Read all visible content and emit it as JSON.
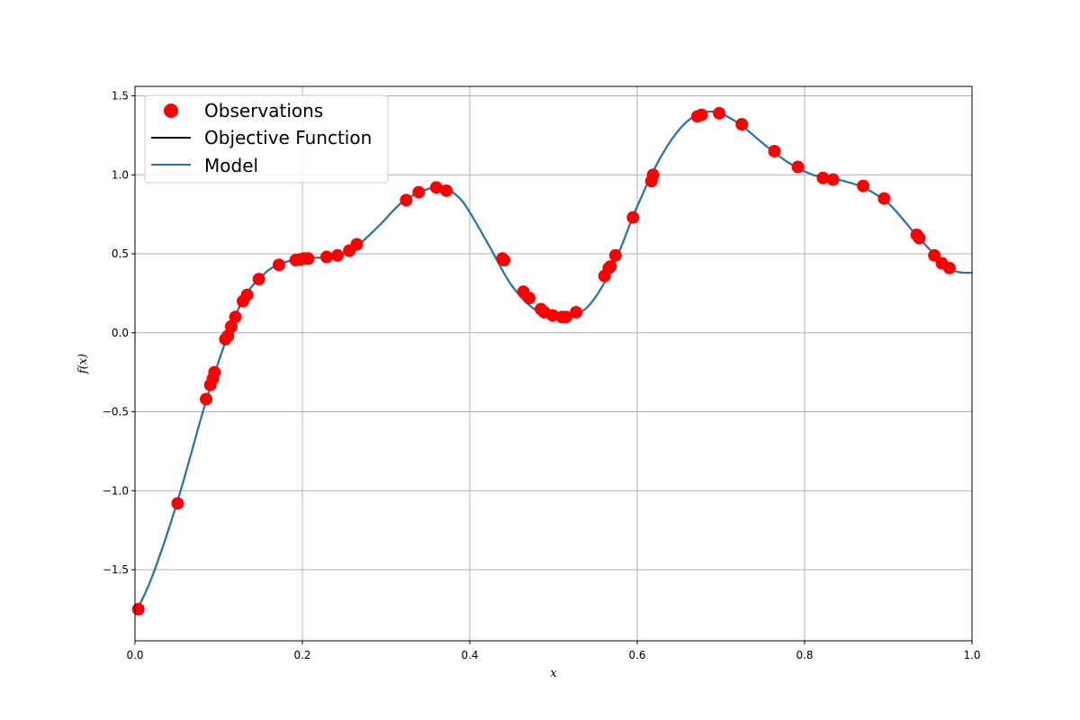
{
  "chart_data": {
    "type": "line",
    "title": "",
    "xlabel": "x",
    "ylabel": "f(x)",
    "xlim": [
      0.0,
      1.0
    ],
    "ylim": [
      -1.95,
      1.56
    ],
    "grid": true,
    "legend_position": "top-left",
    "x_ticks": [
      "0.0",
      "0.2",
      "0.4",
      "0.6",
      "0.8",
      "1.0"
    ],
    "x_tick_values": [
      0.0,
      0.2,
      0.4,
      0.6,
      0.8,
      1.0
    ],
    "y_ticks": [
      "−1.5",
      "−1.0",
      "−0.5",
      "0.0",
      "0.5",
      "1.0",
      "1.5"
    ],
    "y_tick_values": [
      -1.5,
      -1.0,
      -0.5,
      0.0,
      0.5,
      1.0,
      1.5
    ],
    "series": [
      {
        "name": "Observations",
        "kind": "scatter",
        "color": "#ff0000",
        "x": [
          0.004,
          0.051,
          0.085,
          0.09,
          0.093,
          0.095,
          0.108,
          0.111,
          0.115,
          0.12,
          0.129,
          0.134,
          0.148,
          0.172,
          0.192,
          0.198,
          0.202,
          0.207,
          0.229,
          0.242,
          0.256,
          0.265,
          0.324,
          0.339,
          0.36,
          0.372,
          0.439,
          0.441,
          0.464,
          0.471,
          0.485,
          0.489,
          0.499,
          0.51,
          0.515,
          0.527,
          0.561,
          0.566,
          0.568,
          0.574,
          0.595,
          0.617,
          0.619,
          0.672,
          0.677,
          0.698,
          0.725,
          0.764,
          0.792,
          0.822,
          0.834,
          0.87,
          0.895,
          0.934,
          0.937,
          0.955,
          0.964,
          0.973
        ],
        "y": [
          -1.75,
          -1.08,
          -0.42,
          -0.33,
          -0.29,
          -0.25,
          -0.04,
          -0.02,
          0.04,
          0.1,
          0.2,
          0.24,
          0.34,
          0.43,
          0.46,
          0.465,
          0.47,
          0.47,
          0.48,
          0.49,
          0.52,
          0.56,
          0.84,
          0.89,
          0.92,
          0.9,
          0.47,
          0.46,
          0.26,
          0.22,
          0.15,
          0.13,
          0.11,
          0.1,
          0.1,
          0.13,
          0.36,
          0.41,
          0.42,
          0.49,
          0.73,
          0.96,
          1.0,
          1.37,
          1.38,
          1.39,
          1.32,
          1.15,
          1.05,
          0.98,
          0.97,
          0.93,
          0.85,
          0.62,
          0.6,
          0.49,
          0.44,
          0.41
        ]
      },
      {
        "name": "Objective Function",
        "kind": "line",
        "color": "#000000",
        "x": [
          0.0,
          0.02,
          0.05,
          0.085,
          0.11,
          0.13,
          0.15,
          0.17,
          0.2,
          0.23,
          0.26,
          0.29,
          0.32,
          0.35,
          0.365,
          0.39,
          0.42,
          0.45,
          0.48,
          0.51,
          0.54,
          0.57,
          0.6,
          0.63,
          0.66,
          0.69,
          0.72,
          0.75,
          0.78,
          0.81,
          0.84,
          0.87,
          0.9,
          0.93,
          0.96,
          0.98,
          1.0
        ],
        "y": [
          -1.78,
          -1.55,
          -1.08,
          -0.43,
          -0.03,
          0.22,
          0.35,
          0.43,
          0.47,
          0.48,
          0.53,
          0.67,
          0.83,
          0.91,
          0.92,
          0.84,
          0.58,
          0.3,
          0.14,
          0.1,
          0.16,
          0.41,
          0.8,
          1.13,
          1.34,
          1.4,
          1.33,
          1.2,
          1.08,
          1.0,
          0.97,
          0.92,
          0.82,
          0.64,
          0.47,
          0.39,
          0.38
        ]
      },
      {
        "name": "Model",
        "kind": "line",
        "color": "#1f77b4",
        "x": [
          0.0,
          0.02,
          0.05,
          0.085,
          0.11,
          0.13,
          0.15,
          0.17,
          0.2,
          0.23,
          0.26,
          0.29,
          0.32,
          0.35,
          0.365,
          0.39,
          0.42,
          0.45,
          0.48,
          0.51,
          0.54,
          0.57,
          0.6,
          0.63,
          0.66,
          0.69,
          0.72,
          0.75,
          0.78,
          0.81,
          0.84,
          0.87,
          0.9,
          0.93,
          0.96,
          0.98,
          1.0
        ],
        "y": [
          -1.78,
          -1.55,
          -1.08,
          -0.43,
          -0.03,
          0.22,
          0.35,
          0.43,
          0.47,
          0.48,
          0.53,
          0.67,
          0.83,
          0.91,
          0.92,
          0.84,
          0.58,
          0.3,
          0.14,
          0.1,
          0.16,
          0.41,
          0.8,
          1.13,
          1.34,
          1.4,
          1.33,
          1.2,
          1.08,
          1.0,
          0.97,
          0.92,
          0.82,
          0.64,
          0.47,
          0.39,
          0.38
        ]
      }
    ],
    "legend": [
      "Observations",
      "Objective Function",
      "Model"
    ]
  }
}
